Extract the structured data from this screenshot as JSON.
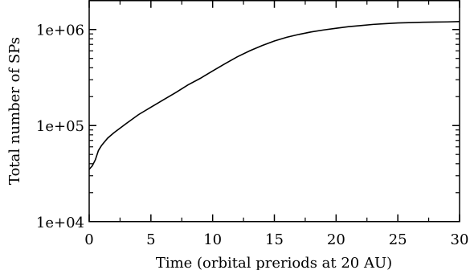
{
  "chart_data": {
    "type": "line",
    "title": "",
    "xlabel": "Time (orbital preriods at 20 AU)",
    "ylabel": "Total number of SPs",
    "xlim": [
      0,
      30
    ],
    "ylim": [
      10000,
      2000000
    ],
    "yscale": "log",
    "grid": false,
    "x_ticks": [
      0,
      5,
      10,
      15,
      20,
      25,
      30
    ],
    "x_tick_labels": [
      "0",
      "5",
      "10",
      "15",
      "20",
      "25",
      "30"
    ],
    "y_ticks": [
      10000,
      100000,
      1000000
    ],
    "y_tick_labels": [
      "1e+04",
      "1e+05",
      "1e+06"
    ],
    "line_color": "#000000",
    "series": [
      {
        "x": [
          0,
          0.25,
          0.5,
          0.75,
          1,
          1.5,
          2,
          3,
          4,
          5,
          6,
          7,
          8,
          9,
          10,
          11,
          12,
          13,
          14,
          15,
          16,
          17,
          18,
          19,
          20,
          21,
          22,
          23,
          24,
          25,
          26,
          27,
          28,
          29,
          30
        ],
        "y": [
          35000,
          38000,
          44000,
          55000,
          62000,
          74000,
          84000,
          105000,
          130000,
          155000,
          185000,
          220000,
          265000,
          310000,
          370000,
          440000,
          520000,
          600000,
          680000,
          760000,
          830000,
          890000,
          945000,
          990000,
          1030000,
          1070000,
          1100000,
          1130000,
          1150000,
          1170000,
          1180000,
          1190000,
          1195000,
          1200000,
          1210000
        ]
      }
    ]
  }
}
